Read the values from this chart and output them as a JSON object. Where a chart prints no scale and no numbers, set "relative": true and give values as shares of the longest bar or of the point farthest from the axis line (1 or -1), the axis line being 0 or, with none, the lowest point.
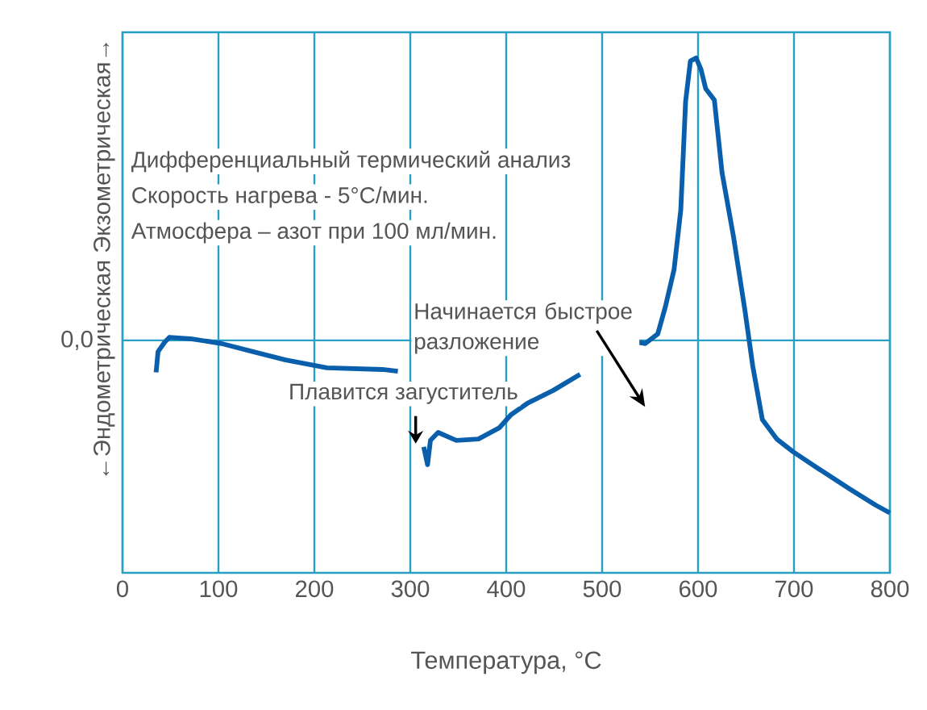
{
  "chart_data": {
    "type": "line",
    "relative": true,
    "xlabel": "Температура, °C",
    "ylabel": "←Эндометрическая   Экзометрическая→",
    "xlim": [
      0,
      800
    ],
    "xticks": [
      0,
      100,
      200,
      300,
      400,
      500,
      600,
      700,
      800
    ],
    "grid": "x",
    "ref_lines": [
      {
        "axis": "y",
        "value": 0,
        "label": "0,0",
        "color": "#2a9fc4"
      }
    ],
    "annotations": [
      "Дифференциальный термический анализ",
      "Скорость нагрева - 5°C/мин.",
      "Атмосфера – азот при 100 мл/мин.",
      "Плавится загуститель",
      "Начинается быстрое разложение"
    ],
    "series": [
      {
        "color": "#0a5fad",
        "x": [
          35,
          37,
          44,
          49,
          71,
          103,
          136,
          170,
          213,
          271,
          287,
          300,
          314,
          318,
          321,
          329,
          348,
          371,
          393,
          405,
          422,
          449,
          477,
          491,
          520,
          536,
          545,
          558,
          566,
          575,
          582,
          587,
          592,
          598,
          603,
          608,
          617,
          625,
          637,
          649,
          657,
          667,
          682,
          699,
          724,
          758,
          785,
          800
        ],
        "values": [
          -0.113,
          -0.04,
          -0.006,
          0.011,
          0.006,
          -0.011,
          -0.04,
          -0.069,
          -0.097,
          -0.103,
          -0.109,
          null,
          -0.377,
          -0.44,
          -0.354,
          -0.326,
          -0.354,
          -0.349,
          -0.309,
          -0.263,
          -0.223,
          -0.177,
          -0.12,
          null,
          null,
          -0.006,
          -0.011,
          0.023,
          0.12,
          0.251,
          0.463,
          0.846,
          0.989,
          1.0,
          0.96,
          0.891,
          0.851,
          0.594,
          0.366,
          0.103,
          -0.091,
          -0.28,
          -0.349,
          -0.394,
          -0.451,
          -0.526,
          -0.583,
          -0.611
        ]
      }
    ]
  }
}
